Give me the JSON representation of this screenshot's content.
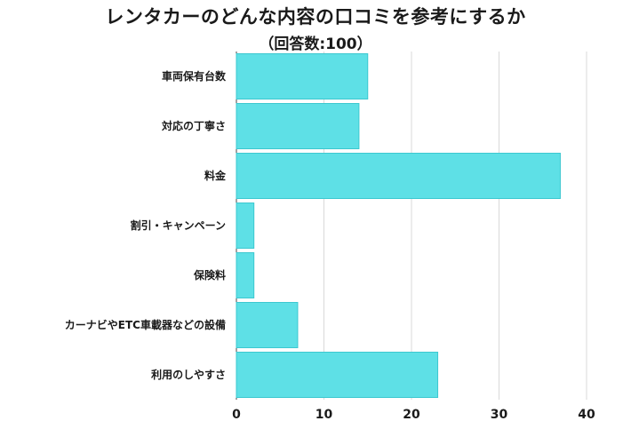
{
  "title": "レンタカーのどんな内容の口コミを参考にするか",
  "subtitle": "（回答数:100）",
  "colors": {
    "bar": "#5ee0e6",
    "bar_stroke": "#3cc8d0",
    "grid": "#d9d9d9",
    "axis": "#444444"
  },
  "chart_data": {
    "type": "bar",
    "orientation": "horizontal",
    "categories": [
      "車両保有台数",
      "対応の丁寧さ",
      "料金",
      "割引・キャンペーン",
      "保険料",
      "カーナビやETC車載器などの設備",
      "利用のしやすさ"
    ],
    "values": [
      15,
      14,
      37,
      2,
      2,
      7,
      23
    ],
    "xlim": [
      0,
      40
    ],
    "xticks": [
      0,
      10,
      20,
      30,
      40
    ],
    "tick_labels": [
      "0",
      "10",
      "20",
      "30",
      "40"
    ],
    "grid": true
  }
}
